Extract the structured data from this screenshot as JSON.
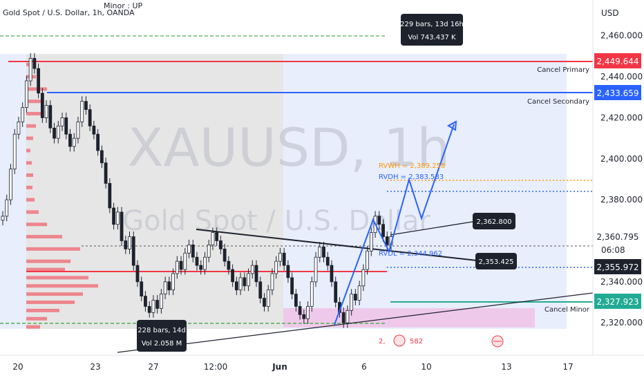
{
  "chart_data": {
    "type": "line",
    "title": "Gold Spot / U.S. Dollar, 1h, OANDA",
    "subtitle": "Minor : UP",
    "watermark": {
      "symbol": "XAUUSD, 1h",
      "name": "Gold Spot / U.S. Dollar"
    },
    "currency": "USD",
    "x_ticks": [
      "20",
      "23",
      "27",
      "12:00",
      "Jun",
      "6",
      "10",
      "13",
      "17"
    ],
    "y_ticks": [
      "2,460.000",
      "2,440.000",
      "2,420.000",
      "2,400.000",
      "2,380.000",
      "2,340.000",
      "2,320.000"
    ],
    "ylim": [
      2314,
      2468
    ],
    "series": [
      {
        "values": [
          2372,
          2380,
          2395,
          2412,
          2418,
          2425,
          2438,
          2449,
          2444,
          2432,
          2420,
          2426,
          2415,
          2410,
          2416,
          2420,
          2412,
          2406,
          2410,
          2418,
          2428,
          2424,
          2416,
          2412,
          2404,
          2398,
          2388,
          2376,
          2368,
          2374,
          2360,
          2356,
          2362,
          2348,
          2340,
          2333,
          2328,
          2325,
          2331,
          2327,
          2334,
          2340,
          2336,
          2344,
          2350,
          2346,
          2354,
          2358,
          2352,
          2348,
          2346,
          2352,
          2358,
          2364,
          2360,
          2356,
          2350,
          2346,
          2340,
          2336,
          2342,
          2338,
          2344,
          2348,
          2340,
          2332,
          2328,
          2336,
          2344,
          2350,
          2354,
          2348,
          2342,
          2334,
          2328,
          2324,
          2322,
          2328,
          2340,
          2352,
          2357,
          2352,
          2348,
          2340,
          2330,
          2325,
          2320,
          2326,
          2334,
          2331,
          2338,
          2346,
          2355,
          2364,
          2372,
          2368,
          2362,
          2358,
          2362
        ]
      }
    ],
    "levels": [
      {
        "label": "Cancel Primary",
        "value": "2,449.644",
        "price": 2449.644,
        "color": "#f23645"
      },
      {
        "label": "Cancel Secondary",
        "value": "2,433.659",
        "price": 2433.659,
        "color": "#2962ff"
      },
      {
        "label": "Cancel Minor",
        "value": "2,327.923",
        "price": 2327.923,
        "color": "#22ab94"
      }
    ],
    "current_price": {
      "value": "2,360.795",
      "countdown": "06:08"
    },
    "second_price": {
      "value": "2,355.972"
    },
    "annotations": {
      "rvwh": "RVWH = 2,389.258",
      "rvdh": "RVDH = 2,383.583",
      "rvdl": "RVDL = 2,344.962",
      "rvdl_bottom": "2,",
      "rvdl_bottom_2": "582",
      "callout_upper": "2,362.800",
      "callout_lower": "2,353.425",
      "range_left": [
        "228 bars, 14d",
        "Vol 2.058 M"
      ],
      "range_right": [
        "229 bars, 13d 16h",
        "Vol 743.437 K"
      ]
    },
    "colors": {
      "bull": "#089981",
      "bear": "#f23645",
      "candle": "#1e222d",
      "projection": "#2962ff",
      "rvwh": "#ff9800",
      "rvdh": "#2962ff",
      "green_line": "#4caf50"
    }
  }
}
